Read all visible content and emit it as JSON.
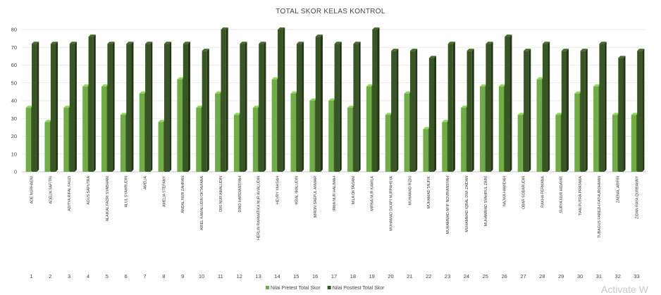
{
  "chart_data": {
    "type": "bar",
    "title": "TOTAL SKOR KELAS KONTROL",
    "xlabel": "",
    "ylabel": "",
    "ylim": [
      0,
      80
    ],
    "yticks": [
      0,
      10,
      20,
      30,
      40,
      50,
      60,
      70,
      80
    ],
    "grid": true,
    "legend_position": "bottom",
    "categories": [
      "ADE NURHAENI",
      "ADELIA SAFITRI",
      "ADITYA RIFAL FAUZI",
      "AGUS SAPUTRA",
      "ALAIKAL FAZRI SYABHANI",
      "ALUL SYAHRUDIN",
      "AMELIA",
      "AMELIA STEPANY",
      "ANDAL NUR ZAHRAN",
      "ARIEL KAMALUDIN OKTAVIANA",
      "DIKI NUR AMALUDIN",
      "DINO HARDIANSYAH",
      "HERLIN RAHMATIKA NUR AVIALUDIN",
      "HEVRY YAHSAH",
      "IKBAL IMALUDIN",
      "IMRON SAEPUL ANWAR",
      "IRMA NUR HALIMAH",
      "MILA OKTAVIANI",
      "MIRNA NUR KAMILA",
      "MUHAMAD DA'API NURPAHSYA",
      "MUHAMAD RIZKI",
      "MUHAMAD TAUFIK",
      "MUHAMMAD AFIF NOVRIANSYAH",
      "MUHAMMAD IQBAL DWI ZAIDAN",
      "MUHAMMAD SYAHRUL ZAINI",
      "NAJWA HAMIDAH",
      "OBAR SOBARUDIN",
      "RAKHA PERMANA",
      "SURYA NUR HIDAYAT",
      "TIAN PUTRA PRATAMA",
      "TUBAGUS FAREZH FATHUROHMAN",
      "ZAENAL ARIFIN",
      "ZIDAN RAYA QURBANNY"
    ],
    "numbers": [
      "1",
      "2",
      "3",
      "4",
      "5",
      "6",
      "7",
      "8",
      "9",
      "10",
      "11",
      "12",
      "13",
      "14",
      "15",
      "16",
      "17",
      "18",
      "19",
      "20",
      "21",
      "22",
      "23",
      "24",
      "25",
      "26",
      "27",
      "28",
      "29",
      "30",
      "31",
      "32",
      "33"
    ],
    "series": [
      {
        "name": "Nilai Pretest Total Skor",
        "color": "#70ad47",
        "values": [
          36,
          28,
          36,
          48,
          48,
          32,
          44,
          28,
          52,
          36,
          44,
          32,
          36,
          52,
          44,
          40,
          40,
          36,
          48,
          32,
          44,
          24,
          28,
          36,
          48,
          48,
          32,
          52,
          32,
          44,
          48,
          32,
          32
        ]
      },
      {
        "name": "Nilai Posttest Total Skor",
        "color": "#375623",
        "values": [
          72,
          72,
          72,
          76,
          72,
          72,
          72,
          72,
          72,
          68,
          80,
          72,
          72,
          80,
          72,
          76,
          72,
          72,
          80,
          68,
          68,
          64,
          72,
          68,
          72,
          76,
          68,
          72,
          68,
          68,
          72,
          64,
          68
        ]
      }
    ]
  },
  "overlay": {
    "watermark": "Activate W"
  }
}
